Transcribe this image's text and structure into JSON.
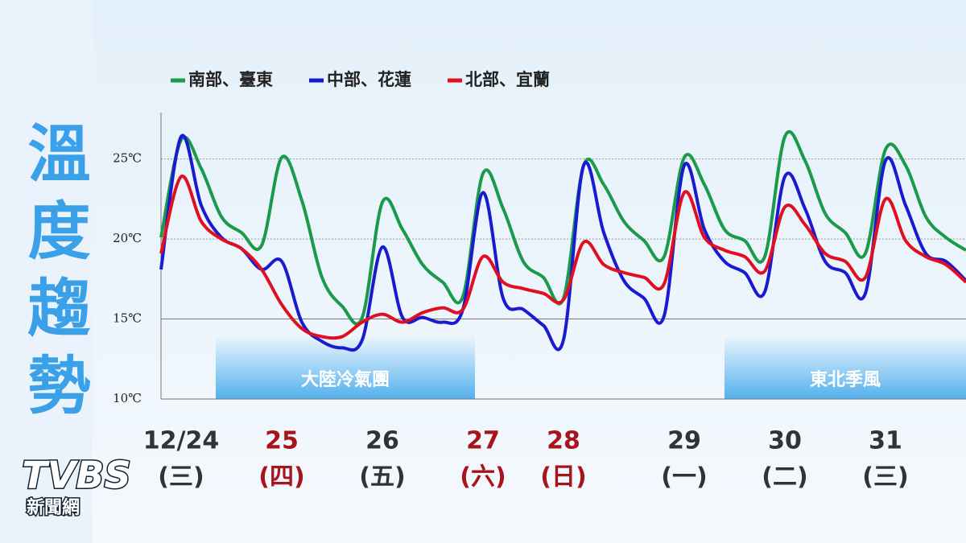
{
  "title": "溫度趨勢",
  "logo": {
    "brand": "TVBS",
    "sub": "新聞網"
  },
  "chart_data": {
    "type": "line",
    "categories": [
      null,
      "12/24",
      null,
      null,
      null,
      null,
      "25",
      null,
      null,
      null,
      null,
      "26",
      null,
      null,
      null,
      null,
      "27",
      null,
      null,
      null,
      "28",
      null,
      null,
      null,
      null,
      null,
      "29",
      null,
      null,
      null,
      null,
      "30",
      null,
      null,
      null,
      null,
      "31",
      null,
      null,
      null,
      null
    ],
    "weekdays": [
      null,
      "(三)",
      null,
      null,
      null,
      null,
      "(四)",
      null,
      null,
      null,
      null,
      "(五)",
      null,
      null,
      null,
      null,
      "(六)",
      null,
      null,
      null,
      "(日)",
      null,
      null,
      null,
      null,
      null,
      "(一)",
      null,
      null,
      null,
      null,
      "(二)",
      null,
      null,
      null,
      null,
      "(三)",
      null,
      null,
      null,
      null
    ],
    "label_colors": [
      null,
      "#333333",
      null,
      null,
      null,
      null,
      "#a8141c",
      null,
      null,
      null,
      null,
      "#333333",
      null,
      null,
      null,
      null,
      "#a8141c",
      null,
      null,
      null,
      "#a8141c",
      null,
      null,
      null,
      null,
      null,
      "#333333",
      null,
      null,
      null,
      null,
      "#333333",
      null,
      null,
      null,
      null,
      "#333333",
      null,
      null,
      null,
      null
    ],
    "series": [
      {
        "name": "南部、臺東",
        "color": "#1a9a4a",
        "values": [
          20.1,
          26.2,
          24.4,
          21.4,
          20.4,
          19.6,
          25.1,
          22.4,
          17.6,
          15.8,
          15.1,
          22.3,
          20.6,
          18.4,
          17.3,
          16.4,
          24.1,
          21.9,
          18.6,
          17.6,
          16.3,
          24.6,
          23.4,
          21.1,
          19.9,
          18.9,
          25.1,
          23.4,
          20.6,
          19.9,
          18.9,
          26.4,
          24.9,
          21.6,
          20.4,
          19.1,
          25.6,
          24.6,
          21.4,
          20.1,
          19.3
        ]
      },
      {
        "name": "中部、花蓮",
        "color": "#1a1ad0",
        "values": [
          18.1,
          26.4,
          22.1,
          20.1,
          19.4,
          18.1,
          18.6,
          14.8,
          13.6,
          13.2,
          13.7,
          19.5,
          15.1,
          15.1,
          14.8,
          15.6,
          22.9,
          16.3,
          15.6,
          14.6,
          13.7,
          24.6,
          20.4,
          17.4,
          16.3,
          15.2,
          24.6,
          20.6,
          18.6,
          17.9,
          16.7,
          23.9,
          21.9,
          18.6,
          17.9,
          16.6,
          24.9,
          22.1,
          19.1,
          18.6,
          17.4
        ]
      },
      {
        "name": "北部、宜蘭",
        "color": "#e01020",
        "values": [
          19.1,
          23.9,
          21.1,
          20.0,
          19.4,
          18.1,
          15.9,
          14.4,
          13.9,
          13.9,
          14.8,
          15.3,
          14.8,
          15.4,
          15.7,
          15.6,
          18.9,
          17.3,
          16.9,
          16.6,
          16.2,
          19.8,
          18.4,
          17.9,
          17.6,
          17.2,
          22.9,
          20.1,
          19.3,
          18.9,
          18.0,
          22.0,
          20.9,
          19.1,
          18.6,
          17.6,
          22.5,
          19.9,
          18.9,
          18.4,
          17.3
        ]
      }
    ],
    "ylim": [
      10,
      27.9
    ],
    "yticks": [
      {
        "value": 10,
        "label": "10℃"
      },
      {
        "value": 15,
        "label": "15℃"
      },
      {
        "value": 20,
        "label": "20℃"
      },
      {
        "value": 25,
        "label": "25℃"
      }
    ],
    "annotations": [
      "大陸冷氣團",
      "東北季風"
    ]
  }
}
